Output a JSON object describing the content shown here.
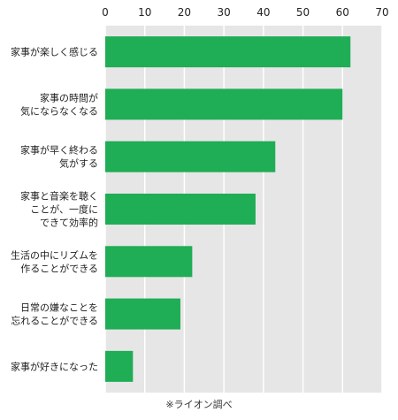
{
  "chart_data": {
    "type": "bar",
    "orientation": "horizontal",
    "categories": [
      [
        "家事が楽しく感じる"
      ],
      [
        "家事の時間が",
        "気にならなくなる"
      ],
      [
        "家事が早く終わる",
        "気がする"
      ],
      [
        "家事と音楽を聴く",
        "ことが、一度に",
        "できて効率的"
      ],
      [
        "生活の中にリズムを",
        "作ることができる"
      ],
      [
        "日常の嫌なことを",
        "忘れることができる"
      ],
      [
        "家事が好きになった"
      ]
    ],
    "values": [
      62,
      60,
      43,
      38,
      22,
      19,
      7
    ],
    "xlim": [
      0,
      70
    ],
    "xticks": [
      0,
      10,
      20,
      30,
      40,
      50,
      60,
      70
    ],
    "xaxis_position": "top",
    "grid": true,
    "bar_color": "#1fad55",
    "plot_background": "#e6e6e6"
  },
  "note": "※ライオン調べ"
}
